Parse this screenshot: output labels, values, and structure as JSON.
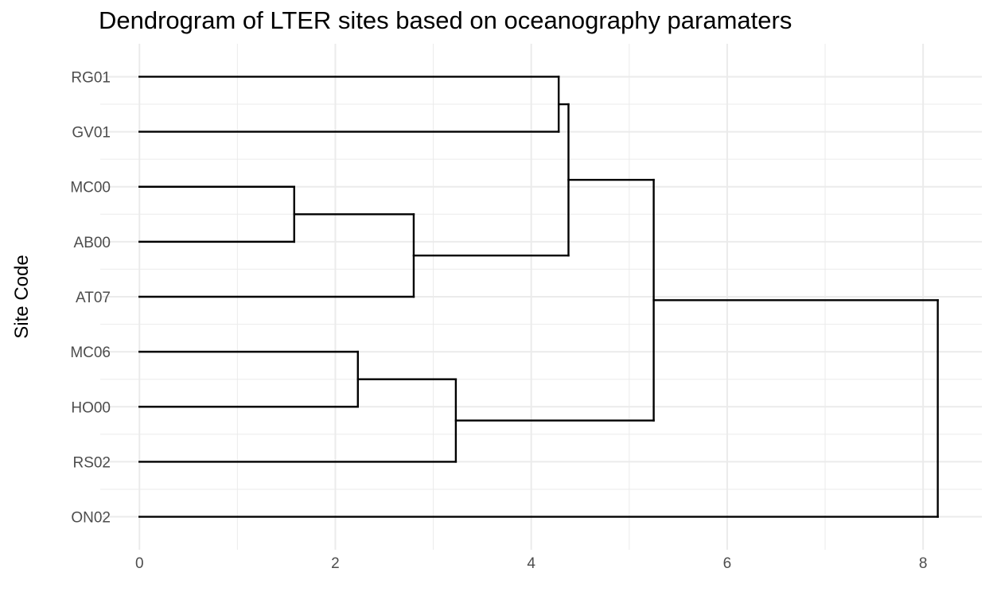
{
  "chart_data": {
    "type": "dendrogram",
    "title": "Dendrogram of LTER sites based on oceanography paramaters",
    "xlabel": "",
    "ylabel": "Site Code",
    "xlim": [
      -0.4,
      8.6
    ],
    "x_ticks": [
      0,
      2,
      4,
      6,
      8
    ],
    "grid": true,
    "orientation": "horizontal",
    "leaves": [
      "ON02",
      "RS02",
      "HO00",
      "MC06",
      "AT07",
      "AB00",
      "MC00",
      "GV01",
      "RG01"
    ],
    "merges": [
      {
        "left": "MC00",
        "right": "AB00",
        "height": 1.58
      },
      {
        "left": "MC06",
        "right": "HO00",
        "height": 2.23
      },
      {
        "left": "MC00+AB00",
        "right": "AT07",
        "height": 2.8
      },
      {
        "left": "MC06+HO00",
        "right": "RS02",
        "height": 3.23
      },
      {
        "left": "RG01",
        "right": "GV01",
        "height": 4.28
      },
      {
        "left": "RG01+GV01",
        "right": "MC00+AB00+AT07",
        "height": 4.38
      },
      {
        "left": "RG01+GV01+MC00+AB00+AT07",
        "right": "MC06+HO00+RS02",
        "height": 5.25
      },
      {
        "left": "all-except-ON02",
        "right": "ON02",
        "height": 8.15
      }
    ],
    "branches": [
      {
        "leaf": "ON02",
        "height": 8.15
      },
      {
        "leaf": "RS02",
        "height": 3.23
      },
      {
        "leaf": "HO00",
        "height": 2.23
      },
      {
        "leaf": "MC06",
        "height": 2.23
      },
      {
        "leaf": "AT07",
        "height": 2.8
      },
      {
        "leaf": "AB00",
        "height": 1.58
      },
      {
        "leaf": "MC00",
        "height": 1.58
      },
      {
        "leaf": "GV01",
        "height": 4.28
      },
      {
        "leaf": "RG01",
        "height": 4.28
      }
    ],
    "nodes": [
      {
        "id": "n1",
        "height": 1.58,
        "children": [
          "AB00",
          "MC00"
        ]
      },
      {
        "id": "n2",
        "height": 2.23,
        "children": [
          "HO00",
          "MC06"
        ]
      },
      {
        "id": "n3",
        "height": 2.8,
        "children": [
          "AT07",
          "n1"
        ]
      },
      {
        "id": "n4",
        "height": 3.23,
        "children": [
          "RS02",
          "n2"
        ]
      },
      {
        "id": "n5",
        "height": 4.28,
        "children": [
          "GV01",
          "RG01"
        ]
      },
      {
        "id": "n6",
        "height": 4.38,
        "children": [
          "n3",
          "n5"
        ]
      },
      {
        "id": "n7",
        "height": 5.25,
        "children": [
          "n4",
          "n6"
        ]
      },
      {
        "id": "n8",
        "height": 8.15,
        "children": [
          "ON02",
          "n7"
        ]
      }
    ],
    "colors": {
      "line": "#000000",
      "grid": "#ebebeb",
      "tick_text": "#4d4d4d",
      "background": "#ffffff"
    }
  }
}
